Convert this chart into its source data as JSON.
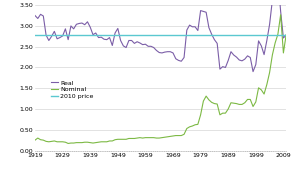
{
  "years": [
    1919,
    1920,
    1921,
    1922,
    1923,
    1924,
    1925,
    1926,
    1927,
    1928,
    1929,
    1930,
    1931,
    1932,
    1933,
    1934,
    1935,
    1936,
    1937,
    1938,
    1939,
    1940,
    1941,
    1942,
    1943,
    1944,
    1945,
    1946,
    1947,
    1948,
    1949,
    1950,
    1951,
    1952,
    1953,
    1954,
    1955,
    1956,
    1957,
    1958,
    1959,
    1960,
    1961,
    1962,
    1963,
    1964,
    1965,
    1966,
    1967,
    1968,
    1969,
    1970,
    1971,
    1972,
    1973,
    1974,
    1975,
    1976,
    1977,
    1978,
    1979,
    1980,
    1981,
    1982,
    1983,
    1984,
    1985,
    1986,
    1987,
    1988,
    1989,
    1990,
    1991,
    1992,
    1993,
    1994,
    1995,
    1996,
    1997,
    1998,
    1999,
    2000,
    2001,
    2002,
    2003,
    2004,
    2005,
    2006,
    2007,
    2008,
    2009,
    2010
  ],
  "nominal": [
    0.25,
    0.3,
    0.26,
    0.25,
    0.22,
    0.21,
    0.22,
    0.23,
    0.21,
    0.21,
    0.21,
    0.2,
    0.17,
    0.18,
    0.18,
    0.19,
    0.19,
    0.19,
    0.2,
    0.2,
    0.19,
    0.18,
    0.19,
    0.2,
    0.21,
    0.21,
    0.21,
    0.23,
    0.23,
    0.26,
    0.27,
    0.27,
    0.27,
    0.27,
    0.29,
    0.29,
    0.29,
    0.3,
    0.31,
    0.3,
    0.31,
    0.31,
    0.31,
    0.31,
    0.3,
    0.3,
    0.31,
    0.32,
    0.33,
    0.34,
    0.35,
    0.36,
    0.36,
    0.36,
    0.39,
    0.53,
    0.57,
    0.59,
    0.62,
    0.63,
    0.86,
    1.19,
    1.31,
    1.22,
    1.16,
    1.13,
    1.12,
    0.86,
    0.9,
    0.9,
    1.0,
    1.15,
    1.14,
    1.13,
    1.11,
    1.11,
    1.15,
    1.23,
    1.23,
    1.06,
    1.17,
    1.51,
    1.46,
    1.36,
    1.59,
    1.88,
    2.3,
    2.59,
    2.8,
    3.27,
    2.35,
    2.79
  ],
  "real": [
    3.25,
    3.18,
    3.28,
    3.24,
    2.78,
    2.65,
    2.75,
    2.87,
    2.69,
    2.72,
    2.76,
    2.93,
    2.67,
    3.0,
    2.93,
    3.04,
    3.06,
    3.07,
    3.03,
    3.1,
    2.97,
    2.79,
    2.83,
    2.72,
    2.73,
    2.68,
    2.67,
    2.72,
    2.53,
    2.83,
    2.94,
    2.65,
    2.52,
    2.48,
    2.65,
    2.65,
    2.58,
    2.62,
    2.59,
    2.55,
    2.56,
    2.51,
    2.51,
    2.48,
    2.41,
    2.36,
    2.35,
    2.37,
    2.38,
    2.38,
    2.35,
    2.21,
    2.17,
    2.15,
    2.24,
    2.9,
    3.02,
    2.98,
    2.98,
    2.89,
    3.37,
    3.35,
    3.33,
    2.96,
    2.8,
    2.67,
    2.58,
    1.96,
    2.02,
    2.0,
    2.17,
    2.38,
    2.3,
    2.25,
    2.18,
    2.16,
    2.2,
    2.28,
    2.24,
    1.9,
    2.07,
    2.64,
    2.52,
    2.31,
    2.65,
    3.04,
    3.62,
    3.96,
    4.15,
    3.35,
    2.71,
    2.78
  ],
  "price_2010": 2.78,
  "nominal_color": "#7cb944",
  "real_color": "#7b5ea7",
  "price_2010_color": "#5bc8d0",
  "ylim": [
    0.0,
    3.5
  ],
  "yticks": [
    0.0,
    0.5,
    1.0,
    1.5,
    2.0,
    2.5,
    3.0,
    3.5
  ],
  "xtick_years": [
    1919,
    1929,
    1939,
    1949,
    1959,
    1969,
    1979,
    1989,
    1999,
    2009
  ],
  "legend_labels": [
    "Nominal",
    "Real",
    "2010 price"
  ],
  "background_color": "#ffffff",
  "grid_color": "#cccccc"
}
